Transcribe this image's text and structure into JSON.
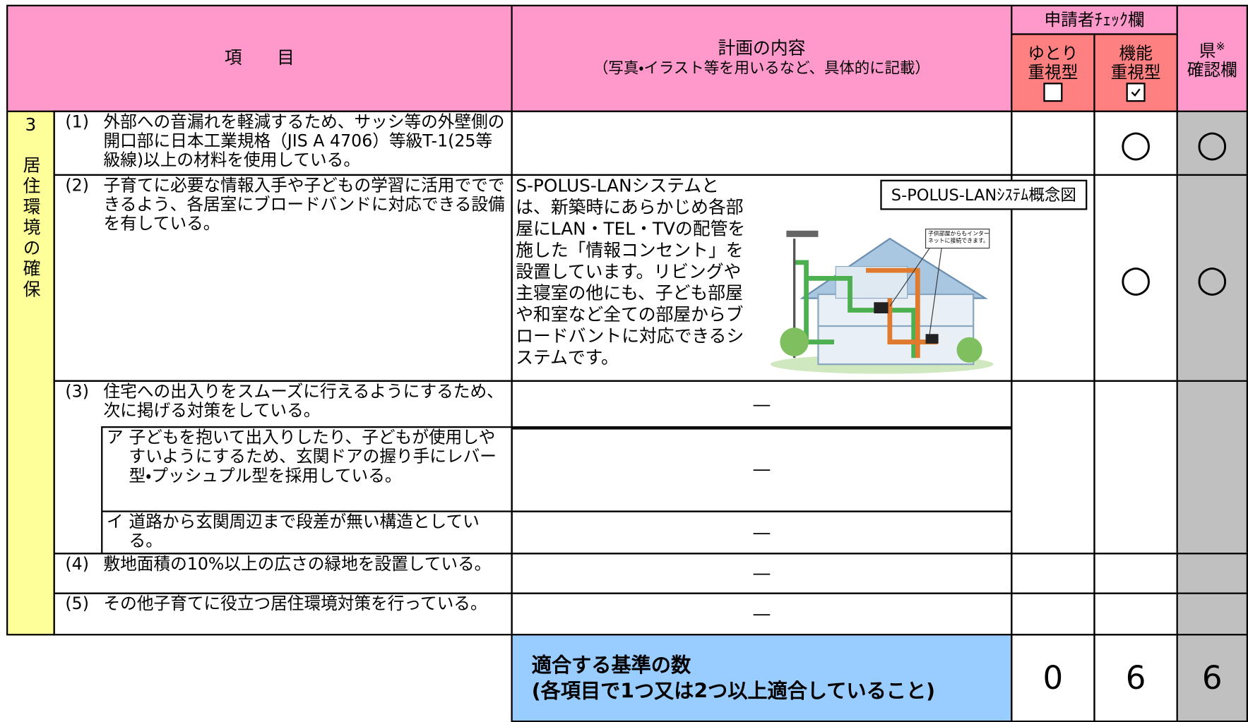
{
  "header": {
    "item": "項　　目",
    "plan_title": "計画の内容",
    "plan_note": "（写真・イラスト等を用いるなど、具体的に記載）",
    "applicant_check": "申請者ﾁｪｯｸ欄",
    "type_yutori": "ゆとり\n重視型",
    "type_kinou": "機能\n重視型",
    "prefecture": "県",
    "prefecture_mark": "※",
    "prefecture_check": "確認欄"
  },
  "section": {
    "number": "3",
    "title": "居住環境の確保"
  },
  "rows": [
    {
      "label": "(1)",
      "text": "外部への音漏れを軽減するため、サッシ等の外壁側の開口部に日本工業規格（JIS A 4706）等級T-1(25等級線)以上の材料を使用している。",
      "kinou": "○",
      "prefecture": "○"
    },
    {
      "label": "(2)",
      "text": "子育てに必要な情報入手や子どもの学習に活用ででできるよう、各居室にブロードバンドに対応できる設備を有している。",
      "plan": "S-POLUS-LANシステムとは、新築時にあらかじめ各部屋にLAN・TEL・TVの配管を施した「情報コンセント」を設置しています。リビングや主寝室の他にも、子ども部屋や和室など全ての部屋からブロードバントに対応できるシステムです。",
      "figure_caption": "S-POLUS-LANｼｽﾃﾑ概念図",
      "figure_callout": "子供部屋からもインターネットに接続できます。",
      "kinou": "○",
      "prefecture": "○"
    },
    {
      "label": "(3)",
      "text": "住宅への出入りをスムーズに行えるようにするため、次に掲げる対策をしている。",
      "plan": "―",
      "subitems": [
        {
          "label": "ア",
          "text": "子どもを抱いて出入りしたり、子どもが使用しやすいようにするため、玄関ドアの握り手にレバー型・プッシュプル型を採用している。",
          "plan": "―"
        },
        {
          "label": "イ",
          "text": "道路から玄関周辺まで段差が無い構造としている。",
          "plan": "―"
        }
      ]
    },
    {
      "label": "(4)",
      "text": "敷地面積の10%以上の広さの緑地を設置している。",
      "plan": "―"
    },
    {
      "label": "(5)",
      "text": "その他子育てに役立つ居住環境対策を行っている。",
      "plan": "―"
    }
  ],
  "summary": {
    "label": "適合する基準の数\n(各項目で1つ又は2つ以上適合していること)",
    "yutori": "0",
    "kinou": "6",
    "prefecture": "6"
  }
}
